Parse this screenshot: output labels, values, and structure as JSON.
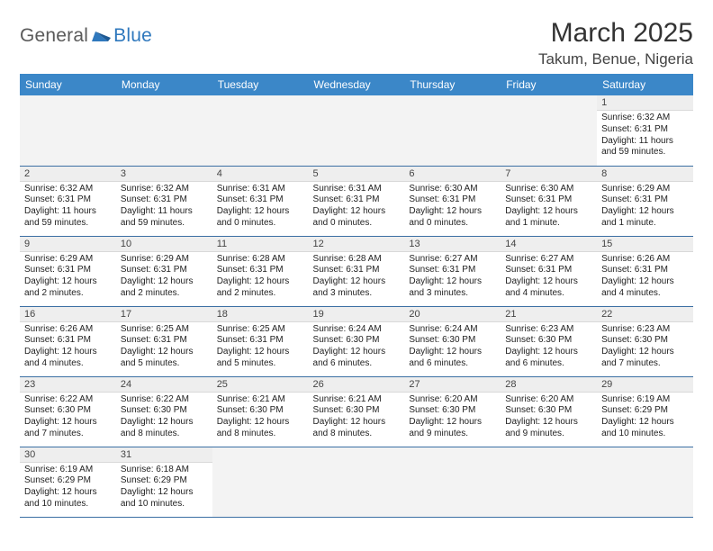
{
  "logo": {
    "general": "General",
    "blue": "Blue"
  },
  "title": "March 2025",
  "location": "Takum, Benue, Nigeria",
  "colors": {
    "header_bg": "#3b87c8",
    "row_border": "#3b6fa3",
    "daynum_bg": "#eeeeee",
    "empty_bg": "#f3f3f3",
    "logo_blue": "#2f78bd"
  },
  "weekdays": [
    "Sunday",
    "Monday",
    "Tuesday",
    "Wednesday",
    "Thursday",
    "Friday",
    "Saturday"
  ],
  "weeks": [
    [
      null,
      null,
      null,
      null,
      null,
      null,
      {
        "n": "1",
        "sunrise": "6:32 AM",
        "sunset": "6:31 PM",
        "daylight": "11 hours and 59 minutes."
      }
    ],
    [
      {
        "n": "2",
        "sunrise": "6:32 AM",
        "sunset": "6:31 PM",
        "daylight": "11 hours and 59 minutes."
      },
      {
        "n": "3",
        "sunrise": "6:32 AM",
        "sunset": "6:31 PM",
        "daylight": "11 hours and 59 minutes."
      },
      {
        "n": "4",
        "sunrise": "6:31 AM",
        "sunset": "6:31 PM",
        "daylight": "12 hours and 0 minutes."
      },
      {
        "n": "5",
        "sunrise": "6:31 AM",
        "sunset": "6:31 PM",
        "daylight": "12 hours and 0 minutes."
      },
      {
        "n": "6",
        "sunrise": "6:30 AM",
        "sunset": "6:31 PM",
        "daylight": "12 hours and 0 minutes."
      },
      {
        "n": "7",
        "sunrise": "6:30 AM",
        "sunset": "6:31 PM",
        "daylight": "12 hours and 1 minute."
      },
      {
        "n": "8",
        "sunrise": "6:29 AM",
        "sunset": "6:31 PM",
        "daylight": "12 hours and 1 minute."
      }
    ],
    [
      {
        "n": "9",
        "sunrise": "6:29 AM",
        "sunset": "6:31 PM",
        "daylight": "12 hours and 2 minutes."
      },
      {
        "n": "10",
        "sunrise": "6:29 AM",
        "sunset": "6:31 PM",
        "daylight": "12 hours and 2 minutes."
      },
      {
        "n": "11",
        "sunrise": "6:28 AM",
        "sunset": "6:31 PM",
        "daylight": "12 hours and 2 minutes."
      },
      {
        "n": "12",
        "sunrise": "6:28 AM",
        "sunset": "6:31 PM",
        "daylight": "12 hours and 3 minutes."
      },
      {
        "n": "13",
        "sunrise": "6:27 AM",
        "sunset": "6:31 PM",
        "daylight": "12 hours and 3 minutes."
      },
      {
        "n": "14",
        "sunrise": "6:27 AM",
        "sunset": "6:31 PM",
        "daylight": "12 hours and 4 minutes."
      },
      {
        "n": "15",
        "sunrise": "6:26 AM",
        "sunset": "6:31 PM",
        "daylight": "12 hours and 4 minutes."
      }
    ],
    [
      {
        "n": "16",
        "sunrise": "6:26 AM",
        "sunset": "6:31 PM",
        "daylight": "12 hours and 4 minutes."
      },
      {
        "n": "17",
        "sunrise": "6:25 AM",
        "sunset": "6:31 PM",
        "daylight": "12 hours and 5 minutes."
      },
      {
        "n": "18",
        "sunrise": "6:25 AM",
        "sunset": "6:31 PM",
        "daylight": "12 hours and 5 minutes."
      },
      {
        "n": "19",
        "sunrise": "6:24 AM",
        "sunset": "6:30 PM",
        "daylight": "12 hours and 6 minutes."
      },
      {
        "n": "20",
        "sunrise": "6:24 AM",
        "sunset": "6:30 PM",
        "daylight": "12 hours and 6 minutes."
      },
      {
        "n": "21",
        "sunrise": "6:23 AM",
        "sunset": "6:30 PM",
        "daylight": "12 hours and 6 minutes."
      },
      {
        "n": "22",
        "sunrise": "6:23 AM",
        "sunset": "6:30 PM",
        "daylight": "12 hours and 7 minutes."
      }
    ],
    [
      {
        "n": "23",
        "sunrise": "6:22 AM",
        "sunset": "6:30 PM",
        "daylight": "12 hours and 7 minutes."
      },
      {
        "n": "24",
        "sunrise": "6:22 AM",
        "sunset": "6:30 PM",
        "daylight": "12 hours and 8 minutes."
      },
      {
        "n": "25",
        "sunrise": "6:21 AM",
        "sunset": "6:30 PM",
        "daylight": "12 hours and 8 minutes."
      },
      {
        "n": "26",
        "sunrise": "6:21 AM",
        "sunset": "6:30 PM",
        "daylight": "12 hours and 8 minutes."
      },
      {
        "n": "27",
        "sunrise": "6:20 AM",
        "sunset": "6:30 PM",
        "daylight": "12 hours and 9 minutes."
      },
      {
        "n": "28",
        "sunrise": "6:20 AM",
        "sunset": "6:30 PM",
        "daylight": "12 hours and 9 minutes."
      },
      {
        "n": "29",
        "sunrise": "6:19 AM",
        "sunset": "6:29 PM",
        "daylight": "12 hours and 10 minutes."
      }
    ],
    [
      {
        "n": "30",
        "sunrise": "6:19 AM",
        "sunset": "6:29 PM",
        "daylight": "12 hours and 10 minutes."
      },
      {
        "n": "31",
        "sunrise": "6:18 AM",
        "sunset": "6:29 PM",
        "daylight": "12 hours and 10 minutes."
      },
      null,
      null,
      null,
      null,
      null
    ]
  ],
  "labels": {
    "sunrise": "Sunrise: ",
    "sunset": "Sunset: ",
    "daylight": "Daylight: "
  }
}
